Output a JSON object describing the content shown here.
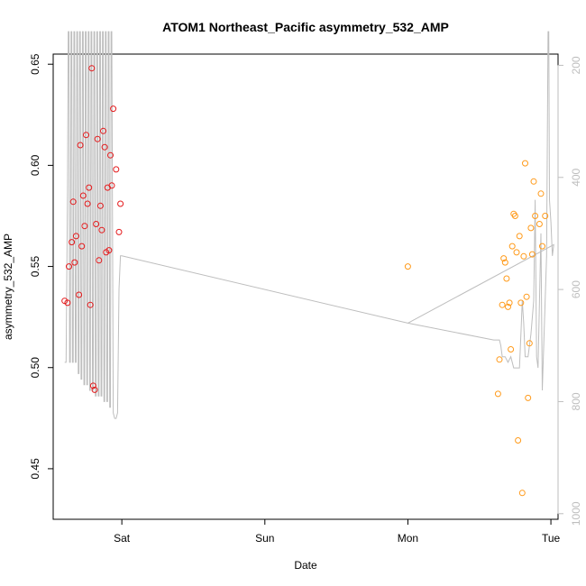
{
  "chart_data": {
    "type": "scatter",
    "title": "ATOM1 Northeast_Pacific asymmetry_532_AMP",
    "xlabel": "Date",
    "ylabel": "asymmetry_532_AMP",
    "x_ticks": [
      {
        "label": "Sat",
        "day": 1.0
      },
      {
        "label": "Sun",
        "day": 2.0
      },
      {
        "label": "Mon",
        "day": 3.0
      },
      {
        "label": "Tue",
        "day": 4.0
      }
    ],
    "xlim": [
      0.52,
      4.05
    ],
    "ylim": [
      0.425,
      0.655
    ],
    "y_ticks": [
      0.45,
      0.5,
      0.55,
      0.6,
      0.65
    ],
    "y2_ticks": [
      200,
      400,
      600,
      800,
      1000
    ],
    "y2lim": [
      1010,
      180
    ],
    "grid": false,
    "colors": {
      "series_red": "#e41a1c",
      "series_orange": "#ff9a1a",
      "line": "#bebebe"
    },
    "series": [
      {
        "color": "#e41a1c",
        "points": [
          [
            0.6,
            0.533
          ],
          [
            0.62,
            0.532
          ],
          [
            0.63,
            0.55
          ],
          [
            0.65,
            0.562
          ],
          [
            0.66,
            0.582
          ],
          [
            0.67,
            0.552
          ],
          [
            0.68,
            0.565
          ],
          [
            0.7,
            0.536
          ],
          [
            0.71,
            0.61
          ],
          [
            0.72,
            0.56
          ],
          [
            0.73,
            0.585
          ],
          [
            0.74,
            0.57
          ],
          [
            0.75,
            0.615
          ],
          [
            0.76,
            0.581
          ],
          [
            0.77,
            0.589
          ],
          [
            0.78,
            0.531
          ],
          [
            0.79,
            0.648
          ],
          [
            0.8,
            0.491
          ],
          [
            0.81,
            0.489
          ],
          [
            0.82,
            0.571
          ],
          [
            0.83,
            0.613
          ],
          [
            0.84,
            0.553
          ],
          [
            0.85,
            0.58
          ],
          [
            0.86,
            0.568
          ],
          [
            0.87,
            0.617
          ],
          [
            0.88,
            0.609
          ],
          [
            0.89,
            0.557
          ],
          [
            0.9,
            0.589
          ],
          [
            0.91,
            0.558
          ],
          [
            0.92,
            0.605
          ],
          [
            0.93,
            0.59
          ],
          [
            0.94,
            0.628
          ],
          [
            0.96,
            0.598
          ],
          [
            0.98,
            0.567
          ],
          [
            0.99,
            0.581
          ]
        ]
      },
      {
        "color": "#ff9a1a",
        "points": [
          [
            3.0,
            0.55
          ],
          [
            3.63,
            0.487
          ],
          [
            3.64,
            0.504
          ],
          [
            3.66,
            0.531
          ],
          [
            3.67,
            0.554
          ],
          [
            3.68,
            0.552
          ],
          [
            3.69,
            0.544
          ],
          [
            3.7,
            0.53
          ],
          [
            3.71,
            0.532
          ],
          [
            3.72,
            0.509
          ],
          [
            3.73,
            0.56
          ],
          [
            3.74,
            0.576
          ],
          [
            3.75,
            0.575
          ],
          [
            3.76,
            0.557
          ],
          [
            3.77,
            0.464
          ],
          [
            3.78,
            0.565
          ],
          [
            3.79,
            0.532
          ],
          [
            3.8,
            0.438
          ],
          [
            3.81,
            0.555
          ],
          [
            3.82,
            0.601
          ],
          [
            3.83,
            0.535
          ],
          [
            3.84,
            0.485
          ],
          [
            3.85,
            0.512
          ],
          [
            3.86,
            0.569
          ],
          [
            3.87,
            0.556
          ],
          [
            3.88,
            0.592
          ],
          [
            3.89,
            0.575
          ],
          [
            3.92,
            0.571
          ],
          [
            3.93,
            0.586
          ],
          [
            3.94,
            0.56
          ],
          [
            3.96,
            0.575
          ]
        ]
      }
    ],
    "line_series": [
      {
        "color": "#bebebe",
        "points": [
          [
            0.6,
            730
          ],
          [
            0.61,
            730
          ],
          [
            0.62,
            420
          ],
          [
            0.625,
            140
          ],
          [
            0.63,
            140
          ],
          [
            0.635,
            730
          ],
          [
            0.64,
            730
          ],
          [
            0.645,
            140
          ],
          [
            0.65,
            140
          ],
          [
            0.655,
            730
          ],
          [
            0.66,
            730
          ],
          [
            0.665,
            140
          ],
          [
            0.67,
            140
          ],
          [
            0.675,
            730
          ],
          [
            0.68,
            730
          ],
          [
            0.685,
            140
          ],
          [
            0.69,
            140
          ],
          [
            0.695,
            750
          ],
          [
            0.7,
            750
          ],
          [
            0.705,
            140
          ],
          [
            0.71,
            140
          ],
          [
            0.715,
            760
          ],
          [
            0.72,
            760
          ],
          [
            0.725,
            140
          ],
          [
            0.73,
            140
          ],
          [
            0.735,
            770
          ],
          [
            0.74,
            770
          ],
          [
            0.745,
            140
          ],
          [
            0.75,
            140
          ],
          [
            0.755,
            770
          ],
          [
            0.76,
            770
          ],
          [
            0.765,
            140
          ],
          [
            0.77,
            140
          ],
          [
            0.775,
            780
          ],
          [
            0.78,
            780
          ],
          [
            0.785,
            140
          ],
          [
            0.79,
            140
          ],
          [
            0.795,
            780
          ],
          [
            0.8,
            780
          ],
          [
            0.805,
            140
          ],
          [
            0.81,
            140
          ],
          [
            0.815,
            790
          ],
          [
            0.82,
            790
          ],
          [
            0.825,
            140
          ],
          [
            0.83,
            140
          ],
          [
            0.835,
            790
          ],
          [
            0.84,
            790
          ],
          [
            0.845,
            140
          ],
          [
            0.85,
            140
          ],
          [
            0.855,
            790
          ],
          [
            0.86,
            790
          ],
          [
            0.865,
            140
          ],
          [
            0.87,
            140
          ],
          [
            0.875,
            800
          ],
          [
            0.88,
            800
          ],
          [
            0.885,
            140
          ],
          [
            0.89,
            140
          ],
          [
            0.895,
            800
          ],
          [
            0.9,
            800
          ],
          [
            0.905,
            140
          ],
          [
            0.91,
            140
          ],
          [
            0.915,
            810
          ],
          [
            0.92,
            810
          ],
          [
            0.925,
            140
          ],
          [
            0.93,
            140
          ],
          [
            0.94,
            820
          ],
          [
            0.95,
            830
          ],
          [
            0.96,
            830
          ],
          [
            0.97,
            820
          ],
          [
            0.98,
            600
          ],
          [
            0.99,
            540
          ],
          [
            1.0,
            540
          ],
          [
            3.0,
            660
          ],
          [
            3.6,
            690
          ],
          [
            3.64,
            690
          ],
          [
            3.65,
            700
          ],
          [
            3.66,
            720
          ],
          [
            3.68,
            720
          ],
          [
            3.7,
            730
          ],
          [
            3.72,
            720
          ],
          [
            3.74,
            740
          ],
          [
            3.76,
            740
          ],
          [
            3.78,
            740
          ],
          [
            3.79,
            680
          ],
          [
            3.8,
            620
          ],
          [
            3.81,
            660
          ],
          [
            3.82,
            720
          ],
          [
            3.84,
            720
          ],
          [
            3.86,
            680
          ],
          [
            3.88,
            620
          ],
          [
            3.89,
            440
          ],
          [
            3.9,
            720
          ],
          [
            3.91,
            740
          ],
          [
            3.92,
            620
          ],
          [
            3.93,
            500
          ],
          [
            3.94,
            780
          ],
          [
            3.95,
            700
          ],
          [
            3.96,
            620
          ],
          [
            3.97,
            540
          ],
          [
            3.98,
            140
          ],
          [
            3.985,
            140
          ],
          [
            3.99,
            440
          ],
          [
            4.0,
            480
          ],
          [
            4.01,
            540
          ],
          [
            4.02,
            520
          ],
          [
            3.0,
            660
          ]
        ]
      }
    ]
  }
}
